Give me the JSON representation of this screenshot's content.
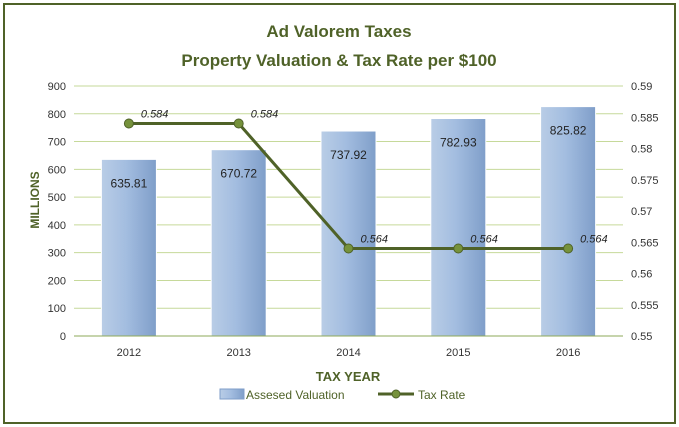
{
  "chart_data": {
    "type": "bar",
    "title": "Ad Valorem Taxes",
    "subtitle": "Property Valuation & Tax Rate per $100",
    "categories": [
      "2012",
      "2013",
      "2014",
      "2015",
      "2016"
    ],
    "xlabel": "TAX YEAR",
    "ylabel": "MILLIONS",
    "ylim": [
      0,
      900
    ],
    "yticks": [
      "0",
      "100",
      "200",
      "300",
      "400",
      "500",
      "600",
      "700",
      "800",
      "900"
    ],
    "y2lim": [
      0.55,
      0.59
    ],
    "y2ticks": [
      "0.55",
      "0.555",
      "0.56",
      "0.565",
      "0.57",
      "0.575",
      "0.58",
      "0.585",
      "0.59"
    ],
    "series": [
      {
        "name": "Assesed Valuation",
        "type": "bar",
        "axis": "left",
        "values": [
          635.81,
          670.72,
          737.92,
          782.93,
          825.82
        ],
        "labels": [
          "635.81",
          "670.72",
          "737.92",
          "782.93",
          "825.82"
        ],
        "color": "#95b3d7"
      },
      {
        "name": "Tax Rate",
        "type": "line",
        "axis": "right",
        "values": [
          0.584,
          0.584,
          0.564,
          0.564,
          0.564
        ],
        "labels": [
          "0.584",
          "0.584",
          "0.564",
          "0.564",
          "0.564"
        ],
        "color": "#4f6228"
      }
    ],
    "grid": true,
    "legend": "bottom"
  }
}
